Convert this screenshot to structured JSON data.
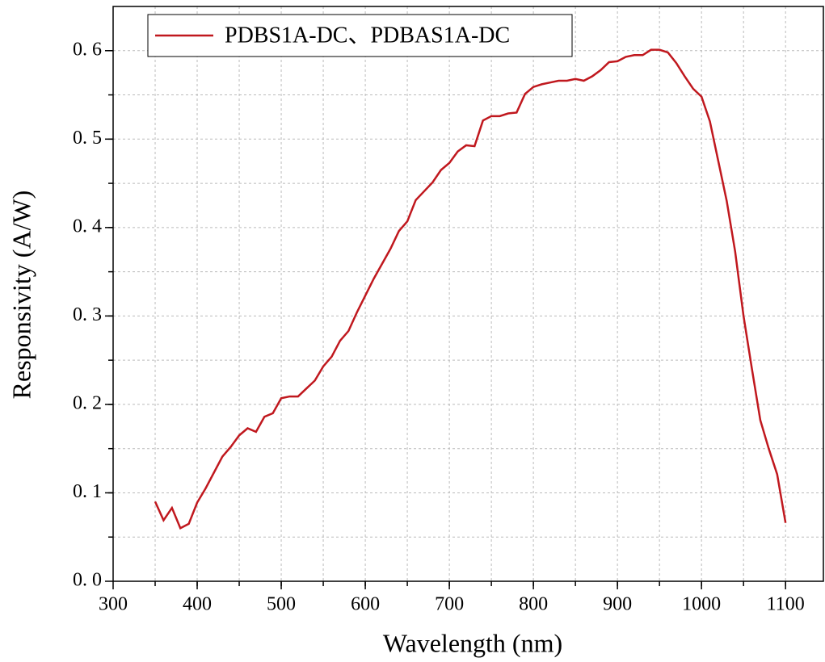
{
  "chart_data": {
    "type": "line",
    "xlabel": "Wavelength (nm)",
    "ylabel": "Responsivity (A/W)",
    "x": [
      350,
      360,
      370,
      380,
      390,
      400,
      410,
      420,
      430,
      440,
      450,
      460,
      470,
      480,
      490,
      500,
      510,
      520,
      530,
      540,
      550,
      560,
      570,
      580,
      590,
      600,
      610,
      620,
      630,
      640,
      650,
      660,
      670,
      680,
      690,
      700,
      710,
      720,
      730,
      740,
      750,
      760,
      770,
      780,
      790,
      800,
      810,
      820,
      830,
      840,
      850,
      860,
      870,
      880,
      890,
      900,
      910,
      920,
      930,
      940,
      950,
      960,
      970,
      980,
      990,
      1000,
      1010,
      1020,
      1030,
      1040,
      1050,
      1060,
      1070,
      1080,
      1090,
      1100
    ],
    "series": [
      {
        "name": "PDBS1A-DC、PDBAS1A-DC",
        "color": "#c0181e",
        "values": [
          0.09,
          0.069,
          0.083,
          0.06,
          0.065,
          0.089,
          0.105,
          0.123,
          0.141,
          0.152,
          0.165,
          0.173,
          0.169,
          0.186,
          0.19,
          0.207,
          0.209,
          0.209,
          0.218,
          0.227,
          0.243,
          0.254,
          0.272,
          0.283,
          0.304,
          0.323,
          0.342,
          0.359,
          0.376,
          0.396,
          0.407,
          0.431,
          0.441,
          0.451,
          0.465,
          0.473,
          0.486,
          0.493,
          0.492,
          0.521,
          0.526,
          0.526,
          0.529,
          0.53,
          0.551,
          0.559,
          0.562,
          0.564,
          0.566,
          0.566,
          0.568,
          0.566,
          0.571,
          0.578,
          0.587,
          0.588,
          0.593,
          0.595,
          0.595,
          0.601,
          0.601,
          0.598,
          0.586,
          0.571,
          0.557,
          0.548,
          0.52,
          0.475,
          0.43,
          0.373,
          0.3,
          0.24,
          0.182,
          0.15,
          0.121,
          0.066
        ]
      }
    ],
    "xlim": [
      300,
      1145
    ],
    "ylim": [
      0,
      0.65
    ],
    "xticks": [
      300,
      400,
      500,
      600,
      700,
      800,
      900,
      1000,
      1100
    ],
    "yticks": [
      {
        "value": 0,
        "label": "0. 0"
      },
      {
        "value": 0.1,
        "label": "0. 1"
      },
      {
        "value": 0.2,
        "label": "0. 2"
      },
      {
        "value": 0.3,
        "label": "0. 3"
      },
      {
        "value": 0.4,
        "label": "0. 4"
      },
      {
        "value": 0.5,
        "label": "0. 5"
      },
      {
        "value": 0.6,
        "label": "0. 6"
      }
    ],
    "xgrid": [
      350,
      400,
      450,
      500,
      550,
      600,
      650,
      700,
      750,
      800,
      850,
      900,
      950,
      1000,
      1050,
      1100
    ],
    "ygrid": [
      0.05,
      0.1,
      0.15,
      0.2,
      0.25,
      0.3,
      0.35,
      0.4,
      0.45,
      0.5,
      0.55,
      0.6
    ],
    "grid": true,
    "legend": "upper left"
  }
}
